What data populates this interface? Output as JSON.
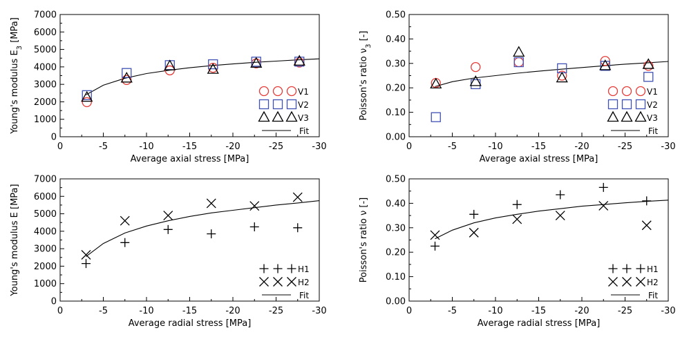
{
  "chart_data": [
    {
      "type": "scatter",
      "xlabel": "Average axial stress [MPa]",
      "ylabel": "Young's modulus E",
      "ylabel_sub": "3",
      "ylabel_unit": " [MPa]",
      "xlim": [
        0,
        -30
      ],
      "ylim": [
        0,
        7000
      ],
      "xticks": [
        0,
        -5,
        -10,
        -15,
        -20,
        -25,
        -30
      ],
      "xtick_labels": [
        "0",
        "-5",
        "-10",
        "-15",
        "-20",
        "-25",
        "-30"
      ],
      "yticks": [
        0,
        1000,
        2000,
        3000,
        4000,
        5000,
        6000,
        7000
      ],
      "ytick_labels": [
        "0",
        "1000",
        "2000",
        "3000",
        "4000",
        "5000",
        "6000",
        "7000"
      ],
      "legend_position": "bottom-right",
      "series": [
        {
          "name": "V1",
          "marker": "circle",
          "color": "#e53935",
          "x": [
            -3.1,
            -7.7,
            -12.7,
            -17.7,
            -22.7,
            -27.7
          ],
          "y": [
            1980,
            3250,
            3800,
            3950,
            4200,
            4250
          ]
        },
        {
          "name": "V2",
          "marker": "square",
          "color": "#3f51b5",
          "x": [
            -3.1,
            -7.7,
            -12.7,
            -17.7,
            -22.7,
            -27.7
          ],
          "y": [
            2380,
            3650,
            4100,
            4150,
            4300,
            4300
          ]
        },
        {
          "name": "V3",
          "marker": "triangle",
          "color": "#000000",
          "x": [
            -3.1,
            -7.7,
            -12.7,
            -17.7,
            -22.7,
            -27.7
          ],
          "y": [
            2250,
            3350,
            4050,
            3850,
            4200,
            4320
          ]
        }
      ],
      "fit": {
        "name": "Fit",
        "x": [
          -3,
          -5,
          -7.5,
          -10,
          -12.5,
          -15,
          -17.5,
          -20,
          -22.5,
          -25,
          -27.5,
          -30
        ],
        "y": [
          2400,
          2950,
          3350,
          3620,
          3800,
          3950,
          4070,
          4170,
          4260,
          4330,
          4400,
          4460
        ]
      }
    },
    {
      "type": "scatter",
      "xlabel": "Average axial stress [MPa]",
      "ylabel": "Poisson's ratio ν",
      "ylabel_sub": "3",
      "ylabel_unit": " [-]",
      "xlim": [
        0,
        -30
      ],
      "ylim": [
        0,
        0.5
      ],
      "xticks": [
        0,
        -5,
        -10,
        -15,
        -20,
        -25,
        -30
      ],
      "xtick_labels": [
        "0",
        "-5",
        "-10",
        "-15",
        "-20",
        "-25",
        "-30"
      ],
      "yticks": [
        0,
        0.1,
        0.2,
        0.3,
        0.4,
        0.5
      ],
      "ytick_labels": [
        "0.00",
        "0.10",
        "0.20",
        "0.30",
        "0.40",
        "0.50"
      ],
      "legend_position": "bottom-right",
      "series": [
        {
          "name": "V1",
          "marker": "circle",
          "color": "#e53935",
          "x": [
            -3.1,
            -7.7,
            -12.7,
            -17.7,
            -22.7,
            -27.7
          ],
          "y": [
            0.22,
            0.285,
            0.305,
            0.25,
            0.31,
            0.29
          ]
        },
        {
          "name": "V2",
          "marker": "square",
          "color": "#3f51b5",
          "x": [
            -3.1,
            -7.7,
            -12.7,
            -17.7,
            -22.7,
            -27.7
          ],
          "y": [
            0.08,
            0.215,
            0.305,
            0.28,
            0.29,
            0.245
          ]
        },
        {
          "name": "V3",
          "marker": "triangle",
          "color": "#000000",
          "x": [
            -3.1,
            -7.7,
            -12.7,
            -17.7,
            -22.7,
            -27.7
          ],
          "y": [
            0.215,
            0.225,
            0.345,
            0.24,
            0.29,
            0.295
          ]
        }
      ],
      "fit": {
        "name": "Fit",
        "x": [
          -3,
          -5,
          -7.5,
          -10,
          -12.5,
          -15,
          -17.5,
          -20,
          -22.5,
          -25,
          -27.5,
          -30
        ],
        "y": [
          0.205,
          0.225,
          0.24,
          0.25,
          0.26,
          0.268,
          0.276,
          0.283,
          0.29,
          0.297,
          0.302,
          0.308
        ]
      }
    },
    {
      "type": "scatter",
      "xlabel": "Average radial stress [MPa]",
      "ylabel": "Young's modulus E",
      "ylabel_sub": "",
      "ylabel_unit": " [MPa]",
      "xlim": [
        0,
        -30
      ],
      "ylim": [
        0,
        7000
      ],
      "xticks": [
        0,
        -5,
        -10,
        -15,
        -20,
        -25,
        -30
      ],
      "xtick_labels": [
        "0",
        "-5",
        "-10",
        "-15",
        "-20",
        "-25",
        "-30"
      ],
      "yticks": [
        0,
        1000,
        2000,
        3000,
        4000,
        5000,
        6000,
        7000
      ],
      "ytick_labels": [
        "0",
        "1000",
        "2000",
        "3000",
        "4000",
        "5000",
        "6000",
        "7000"
      ],
      "legend_position": "bottom-right",
      "series": [
        {
          "name": "H1",
          "marker": "plus",
          "color": "#000000",
          "x": [
            -3.0,
            -7.5,
            -12.5,
            -17.5,
            -22.5,
            -27.5
          ],
          "y": [
            2150,
            3350,
            4100,
            3850,
            4250,
            4200
          ]
        },
        {
          "name": "H2",
          "marker": "cross",
          "color": "#000000",
          "x": [
            -3.0,
            -7.5,
            -12.5,
            -17.5,
            -22.5,
            -27.5
          ],
          "y": [
            2650,
            4600,
            4900,
            5600,
            5450,
            5950
          ]
        }
      ],
      "fit": {
        "name": "Fit",
        "x": [
          -3,
          -5,
          -7.5,
          -10,
          -12.5,
          -15,
          -17.5,
          -20,
          -22.5,
          -25,
          -27.5,
          -30
        ],
        "y": [
          2550,
          3300,
          3900,
          4300,
          4600,
          4850,
          5050,
          5200,
          5350,
          5500,
          5620,
          5750
        ]
      }
    },
    {
      "type": "scatter",
      "xlabel": "Average radial stress [MPa]",
      "ylabel": "Poisson's ratio ν",
      "ylabel_sub": "",
      "ylabel_unit": " [-]",
      "xlim": [
        0,
        -30
      ],
      "ylim": [
        0,
        0.5
      ],
      "xticks": [
        0,
        -5,
        -10,
        -15,
        -20,
        -25,
        -30
      ],
      "xtick_labels": [
        "0",
        "-5",
        "-10",
        "-15",
        "-20",
        "-25",
        "-30"
      ],
      "yticks": [
        0,
        0.1,
        0.2,
        0.3,
        0.4,
        0.5
      ],
      "ytick_labels": [
        "0.00",
        "0.10",
        "0.20",
        "0.30",
        "0.40",
        "0.50"
      ],
      "legend_position": "bottom-right",
      "series": [
        {
          "name": "H1",
          "marker": "plus",
          "color": "#000000",
          "x": [
            -3.0,
            -7.5,
            -12.5,
            -17.5,
            -22.5,
            -27.5
          ],
          "y": [
            0.225,
            0.355,
            0.395,
            0.435,
            0.465,
            0.41
          ]
        },
        {
          "name": "H2",
          "marker": "cross",
          "color": "#000000",
          "x": [
            -3.0,
            -7.5,
            -12.5,
            -17.5,
            -22.5,
            -27.5
          ],
          "y": [
            0.27,
            0.28,
            0.335,
            0.35,
            0.39,
            0.31
          ]
        }
      ],
      "fit": {
        "name": "Fit",
        "x": [
          -3,
          -5,
          -7.5,
          -10,
          -12.5,
          -15,
          -17.5,
          -20,
          -22.5,
          -25,
          -27.5,
          -30
        ],
        "y": [
          0.255,
          0.29,
          0.32,
          0.34,
          0.355,
          0.368,
          0.378,
          0.388,
          0.395,
          0.402,
          0.408,
          0.413
        ]
      }
    }
  ]
}
